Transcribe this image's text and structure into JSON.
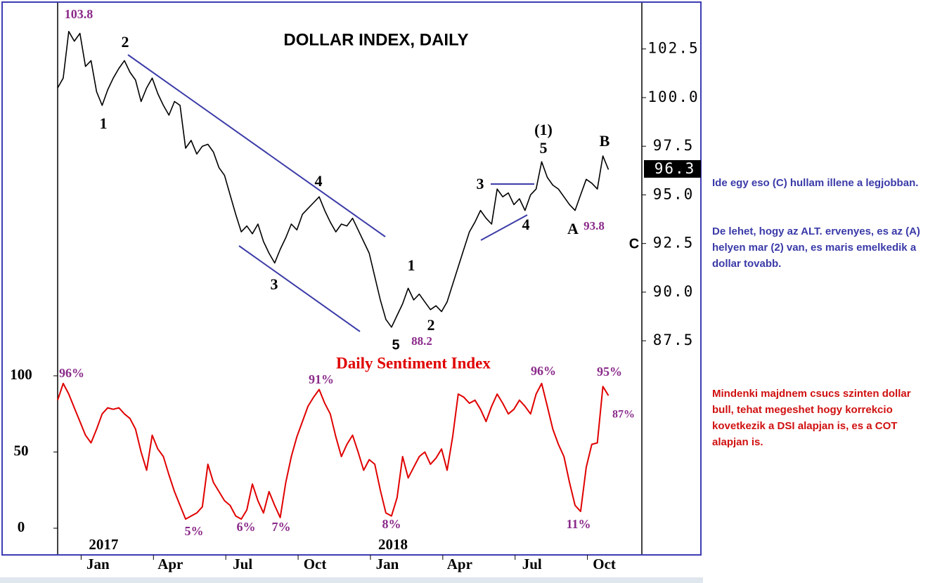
{
  "chart_data": [
    {
      "type": "line",
      "title": "DOLLAR INDEX, DAILY",
      "color": "#000000",
      "y_axis_side": "right",
      "values": [
        100.5,
        101.0,
        103.4,
        102.9,
        103.3,
        101.6,
        101.9,
        100.3,
        99.6,
        100.4,
        101.0,
        101.5,
        101.9,
        101.3,
        100.9,
        99.8,
        100.5,
        101.0,
        100.2,
        99.6,
        99.1,
        99.8,
        99.6,
        97.4,
        97.8,
        97.1,
        97.5,
        97.6,
        97.2,
        96.4,
        96.0,
        95.0,
        94.0,
        93.1,
        93.4,
        93.0,
        93.5,
        92.6,
        92.0,
        91.5,
        92.2,
        92.8,
        93.5,
        93.2,
        94.0,
        94.3,
        94.6,
        94.9,
        94.2,
        93.6,
        93.1,
        93.5,
        93.4,
        93.8,
        93.2,
        92.6,
        92.0,
        90.8,
        89.6,
        88.6,
        88.2,
        88.8,
        89.4,
        90.2,
        89.6,
        89.9,
        89.5,
        89.1,
        89.3,
        89.0,
        89.5,
        90.4,
        91.3,
        92.2,
        93.1,
        93.6,
        94.2,
        93.8,
        93.5,
        95.3,
        94.9,
        95.1,
        94.5,
        94.8,
        94.2,
        95.0,
        95.3,
        96.7,
        95.9,
        95.5,
        95.3,
        94.9,
        94.5,
        94.2,
        95.0,
        95.8,
        95.6,
        95.3,
        97.0,
        96.3
      ],
      "xlim": [
        0,
        105
      ],
      "ylim": [
        87,
        104.8
      ],
      "yticks": [
        102.5,
        {
          "value": 100,
          "label": "100.0"
        },
        97.5,
        {
          "value": 95,
          "label": "95.0"
        },
        92.5,
        {
          "value": 90,
          "label": "90.0"
        },
        87.5
      ],
      "xticks": [
        {
          "value": 7,
          "label": "Jan"
        },
        {
          "value": 20,
          "label": "Apr"
        },
        {
          "value": 33,
          "label": "Jul"
        },
        {
          "value": 46,
          "label": "Oct"
        },
        {
          "value": 59,
          "label": "Jan"
        },
        {
          "value": 72,
          "label": "Apr"
        },
        {
          "value": 85,
          "label": "Jul"
        },
        {
          "value": 98,
          "label": "Oct"
        }
      ],
      "annotations": [
        "103.8",
        "2",
        "1",
        "4",
        "3",
        "5",
        "88.2",
        "1",
        "2",
        "3",
        "4",
        "(1)",
        "5",
        "B",
        "A",
        "93.8",
        "C"
      ]
    },
    {
      "type": "line",
      "title": "Daily Sentiment Index",
      "color": "#e00000",
      "y_axis_side": "left",
      "values": [
        84,
        95,
        88,
        79,
        70,
        61,
        56,
        65,
        75,
        79,
        78,
        79,
        75,
        72,
        65,
        50,
        38,
        61,
        52,
        47,
        35,
        24,
        15,
        6,
        8,
        10,
        14,
        42,
        30,
        24,
        18,
        15,
        8,
        6,
        12,
        29,
        18,
        10,
        24,
        15,
        7,
        30,
        47,
        60,
        70,
        80,
        86,
        91,
        82,
        75,
        60,
        47,
        55,
        61,
        50,
        38,
        45,
        42,
        25,
        10,
        8,
        20,
        47,
        33,
        40,
        47,
        50,
        42,
        46,
        52,
        38,
        60,
        88,
        86,
        82,
        84,
        78,
        70,
        80,
        88,
        82,
        75,
        78,
        84,
        80,
        75,
        88,
        95,
        80,
        65,
        55,
        47,
        30,
        15,
        11,
        40,
        55,
        56,
        93,
        87
      ],
      "xlim": [
        0,
        105
      ],
      "ylim": [
        0,
        100
      ],
      "yticks": [
        0,
        50,
        100
      ],
      "xticks": [
        {
          "value": 7,
          "label": "2017"
        },
        {
          "value": 59,
          "label": "2018"
        }
      ],
      "annotations": [
        "96%",
        "91%",
        "5%",
        "6%",
        "7%",
        "8%",
        "96%",
        "95%",
        "87%",
        "11%"
      ]
    }
  ],
  "notes": [
    "Ide egy eso (C) hullam illene a legjobban.",
    "De lehet, hogy az ALT. ervenyes, es az (A) helyen mar (2) van, es maris emelkedik a dollar  tovabb.",
    "Mindenki majdnem csucs szinten dollar bull, tehat megeshet hogy korrekcio kovetkezik a DSI alapjan is, es a COT alapjan is."
  ]
}
